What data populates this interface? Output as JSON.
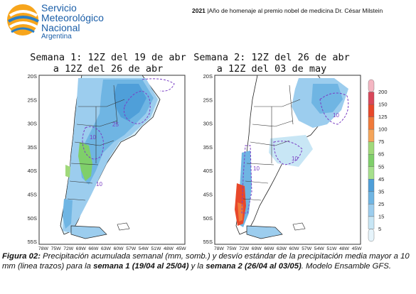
{
  "header": {
    "org_line1": "Servicio",
    "org_line2": "Meteorológico",
    "org_line3": "Nacional",
    "org_line4": "Argentina",
    "year": "2021",
    "motto": "|Año de homenaje al premio nobel de medicina Dr. César Milstein"
  },
  "maps": [
    {
      "title_line1": "Semana 1: 12Z del 19 de abr",
      "title_line2": "a 12Z del 26 de abr"
    },
    {
      "title_line1": "Semana 2: 12Z del 26 de abr",
      "title_line2": "a 12Z del 03 de may"
    }
  ],
  "lat_labels": [
    "20S",
    "25S",
    "30S",
    "35S",
    "40S",
    "45S",
    "50S",
    "55S"
  ],
  "lon_labels": [
    "78W",
    "75W",
    "72W",
    "69W",
    "66W",
    "63W",
    "60W",
    "57W",
    "54W",
    "51W",
    "48W",
    "45W"
  ],
  "contour_labels": {
    "map1": [
      "25",
      "10",
      "10"
    ],
    "map2": [
      "10",
      "10",
      "10"
    ]
  },
  "colorbar": {
    "levels": [
      "200",
      "150",
      "125",
      "100",
      "75",
      "65",
      "55",
      "45",
      "35",
      "25",
      "15",
      "5"
    ],
    "colors": [
      "#f4b6c2",
      "#d9475a",
      "#e8482a",
      "#f07a3a",
      "#f5a55a",
      "#a0d97a",
      "#7fcf6a",
      "#a6e08c",
      "#4f9fd9",
      "#6fb5e3",
      "#9ccdee",
      "#c8e6f5",
      "#e6f4fb"
    ]
  },
  "caption": {
    "fig": "Figura 02:",
    "p1": " Precipitación acumulada semanal (mm, somb.) y desvío estándar de la precipitación media mayor a 10 mm (linea trazos) para la ",
    "s1": "semana 1 (19/04 al 25/04)",
    "p2": " y la ",
    "s2": "semana 2 (26/04 al 03/05)",
    "p3": ". Modelo Ensamble GFS."
  }
}
